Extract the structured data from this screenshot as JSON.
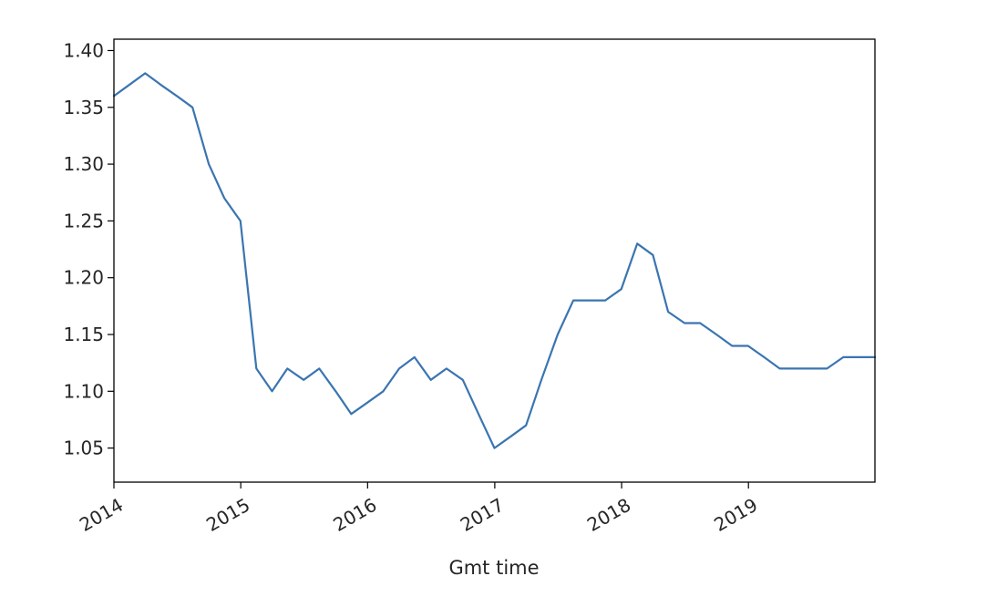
{
  "chart_data": {
    "type": "line",
    "title": "",
    "xlabel": "Gmt time",
    "ylabel": "",
    "xlim": [
      "2014-01-01",
      "2019-12-31"
    ],
    "ylim": [
      1.02,
      1.41
    ],
    "x_ticks": [
      "2014",
      "2015",
      "2016",
      "2017",
      "2018",
      "2019"
    ],
    "y_ticks": [
      "1.05",
      "1.10",
      "1.15",
      "1.20",
      "1.25",
      "1.30",
      "1.35",
      "1.40"
    ],
    "grid": false,
    "legend": "none",
    "series": [
      {
        "color": "#3a75b0",
        "x": [
          "2014-01-01",
          "2014-02-15",
          "2014-04-01",
          "2014-05-15",
          "2014-07-01",
          "2014-08-15",
          "2014-10-01",
          "2014-11-15",
          "2014-12-31",
          "2015-02-15",
          "2015-04-01",
          "2015-05-15",
          "2015-07-01",
          "2015-08-15",
          "2015-10-01",
          "2015-11-15",
          "2015-12-31",
          "2016-02-15",
          "2016-04-01",
          "2016-05-15",
          "2016-07-01",
          "2016-08-15",
          "2016-10-01",
          "2016-11-15",
          "2016-12-31",
          "2017-02-15",
          "2017-04-01",
          "2017-05-15",
          "2017-07-01",
          "2017-08-15",
          "2017-10-01",
          "2017-11-15",
          "2017-12-31",
          "2018-02-15",
          "2018-04-01",
          "2018-05-15",
          "2018-07-01",
          "2018-08-15",
          "2018-10-01",
          "2018-11-15",
          "2018-12-31",
          "2019-02-15",
          "2019-04-01",
          "2019-05-15",
          "2019-07-01",
          "2019-08-15",
          "2019-10-01",
          "2019-11-15",
          "2019-12-31"
        ],
        "y": [
          1.36,
          1.37,
          1.38,
          1.37,
          1.36,
          1.35,
          1.3,
          1.27,
          1.25,
          1.12,
          1.1,
          1.12,
          1.11,
          1.12,
          1.1,
          1.08,
          1.09,
          1.1,
          1.12,
          1.13,
          1.11,
          1.12,
          1.11,
          1.08,
          1.05,
          1.06,
          1.07,
          1.11,
          1.15,
          1.18,
          1.18,
          1.18,
          1.19,
          1.23,
          1.22,
          1.17,
          1.16,
          1.16,
          1.15,
          1.14,
          1.14,
          1.13,
          1.12,
          1.12,
          1.12,
          1.12,
          1.13,
          1.13,
          1.13
        ]
      }
    ]
  }
}
